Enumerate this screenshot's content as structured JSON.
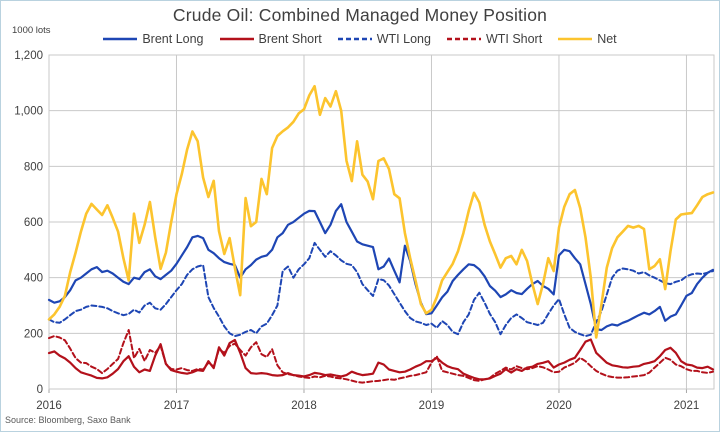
{
  "chart": {
    "title": "Crude Oil: Combined Managed Money Position",
    "unit_label": "1000 lots",
    "source": "Source: Bloomberg,  Saxo Bank"
  },
  "chart_data": {
    "type": "line",
    "title": "Crude Oil: Combined Managed Money Position",
    "ylabel": "1000 lots",
    "xlabel": "",
    "grid": true,
    "legend_position": "top",
    "xlim": [
      2016,
      2021.216
    ],
    "ylim": [
      0,
      1200
    ],
    "x_ticks": [
      2016,
      2017,
      2018,
      2019,
      2020,
      2021
    ],
    "y_ticks": [
      0,
      200,
      400,
      600,
      800,
      1000,
      1200
    ],
    "y_tick_labels": [
      "0",
      "200",
      "400",
      "600",
      "800",
      "1,000",
      "1,200"
    ],
    "x_start": 2016.0,
    "x_step": 0.0416667,
    "colors": {
      "blue": "#1e46b4",
      "red": "#b3111b",
      "yellow": "#fcc42e",
      "gridline": "#c9c9c9",
      "text": "#404040"
    },
    "series": [
      {
        "name": "Brent Long",
        "color": "#1e46b4",
        "dash": "solid",
        "width": 2.2,
        "values": [
          320,
          310,
          315,
          330,
          355,
          390,
          400,
          415,
          430,
          438,
          420,
          425,
          415,
          400,
          385,
          377,
          400,
          395,
          420,
          430,
          405,
          395,
          410,
          425,
          450,
          480,
          510,
          545,
          550,
          542,
          500,
          488,
          470,
          456,
          450,
          445,
          400,
          430,
          445,
          465,
          475,
          480,
          500,
          545,
          560,
          590,
          600,
          615,
          630,
          640,
          639,
          600,
          560,
          590,
          640,
          664,
          600,
          565,
          530,
          520,
          515,
          510,
          430,
          440,
          469,
          425,
          383,
          515,
          460,
          377,
          310,
          269,
          272,
          300,
          329,
          350,
          388,
          410,
          430,
          448,
          445,
          430,
          405,
          370,
          353,
          330,
          340,
          355,
          345,
          341,
          360,
          377,
          388,
          370,
          360,
          340,
          480,
          500,
          495,
          470,
          448,
          377,
          305,
          215,
          212,
          225,
          232,
          228,
          238,
          245,
          255,
          265,
          274,
          268,
          280,
          295,
          245,
          260,
          268,
          300,
          335,
          345,
          377,
          400,
          418,
          428
        ]
      },
      {
        "name": "Brent Short",
        "color": "#b3111b",
        "dash": "solid",
        "width": 2.2,
        "values": [
          129,
          135,
          120,
          110,
          95,
          75,
          60,
          54,
          48,
          40,
          38,
          42,
          55,
          72,
          100,
          118,
          80,
          60,
          70,
          65,
          120,
          161,
          90,
          68,
          62,
          58,
          55,
          60,
          68,
          65,
          100,
          75,
          150,
          120,
          165,
          176,
          130,
          75,
          57,
          55,
          57,
          55,
          50,
          48,
          50,
          57,
          50,
          48,
          45,
          50,
          58,
          55,
          50,
          52,
          48,
          45,
          50,
          62,
          55,
          50,
          52,
          55,
          95,
          88,
          70,
          65,
          60,
          62,
          70,
          80,
          88,
          100,
          100,
          112,
          95,
          82,
          75,
          71,
          55,
          47,
          40,
          35,
          35,
          38,
          47,
          55,
          71,
          59,
          71,
          65,
          77,
          80,
          90,
          94,
          100,
          77,
          88,
          95,
          105,
          112,
          140,
          170,
          178,
          130,
          112,
          94,
          85,
          82,
          78,
          77,
          80,
          82,
          90,
          94,
          100,
          118,
          140,
          148,
          130,
          100,
          88,
          85,
          77,
          75,
          80,
          70
        ]
      },
      {
        "name": "WTI Long",
        "color": "#1e46b4",
        "dash": "dashed",
        "width": 2,
        "values": [
          250,
          240,
          238,
          250,
          265,
          280,
          285,
          295,
          300,
          298,
          295,
          290,
          280,
          272,
          265,
          270,
          285,
          275,
          300,
          310,
          290,
          285,
          305,
          330,
          355,
          377,
          410,
          430,
          440,
          445,
          330,
          291,
          260,
          225,
          200,
          190,
          195,
          205,
          212,
          200,
          225,
          235,
          265,
          300,
          424,
          440,
          400,
          430,
          448,
          470,
          525,
          500,
          475,
          495,
          480,
          462,
          450,
          445,
          420,
          377,
          355,
          334,
          395,
          391,
          372,
          341,
          310,
          280,
          255,
          243,
          238,
          230,
          235,
          220,
          244,
          230,
          205,
          197,
          240,
          268,
          320,
          346,
          310,
          270,
          240,
          197,
          230,
          255,
          268,
          255,
          240,
          235,
          230,
          238,
          270,
          300,
          323,
          268,
          220,
          205,
          197,
          190,
          195,
          240,
          280,
          340,
          400,
          425,
          433,
          430,
          425,
          415,
          420,
          408,
          400,
          390,
          380,
          377,
          385,
          390,
          405,
          412,
          415,
          413,
          418,
          424
        ]
      },
      {
        "name": "WTI Short",
        "color": "#b3111b",
        "dash": "dashed",
        "width": 2,
        "values": [
          183,
          190,
          185,
          175,
          145,
          111,
          95,
          93,
          80,
          72,
          57,
          72,
          90,
          108,
          165,
          212,
          111,
          144,
          101,
          140,
          130,
          155,
          90,
          72,
          70,
          75,
          68,
          65,
          72,
          70,
          95,
          80,
          143,
          130,
          155,
          163,
          140,
          120,
          150,
          168,
          125,
          115,
          143,
          85,
          60,
          53,
          50,
          45,
          42,
          40,
          45,
          42,
          47,
          45,
          40,
          38,
          35,
          30,
          25,
          23,
          25,
          28,
          29,
          32,
          35,
          33,
          38,
          42,
          47,
          50,
          55,
          60,
          95,
          118,
          65,
          60,
          55,
          50,
          47,
          40,
          32,
          29,
          35,
          40,
          55,
          65,
          77,
          70,
          82,
          75,
          71,
          75,
          82,
          78,
          70,
          60,
          62,
          77,
          85,
          94,
          112,
          100,
          82,
          65,
          55,
          47,
          43,
          41,
          41,
          42,
          45,
          47,
          50,
          59,
          77,
          94,
          112,
          105,
          88,
          82,
          71,
          65,
          65,
          60,
          58,
          62
        ]
      },
      {
        "name": "Net",
        "color": "#fcc42e",
        "dash": "solid",
        "width": 2.6,
        "values": [
          250,
          268,
          295,
          335,
          420,
          490,
          565,
          630,
          665,
          645,
          625,
          660,
          615,
          565,
          470,
          390,
          630,
          525,
          590,
          672,
          545,
          432,
          490,
          600,
          700,
          772,
          860,
          925,
          890,
          760,
          690,
          748,
          567,
          485,
          542,
          435,
          337,
          686,
          585,
          600,
          755,
          700,
          866,
          909,
          926,
          940,
          960,
          990,
          1005,
          1055,
          1088,
          985,
          1045,
          1015,
          1070,
          1000,
          820,
          747,
          890,
          770,
          745,
          682,
          819,
          829,
          790,
          700,
          685,
          560,
          470,
          390,
          305,
          272,
          285,
          330,
          390,
          420,
          450,
          495,
          560,
          640,
          705,
          670,
          590,
          530,
          484,
          436,
          470,
          478,
          448,
          500,
          460,
          377,
          305,
          377,
          470,
          424,
          580,
          655,
          700,
          715,
          650,
          545,
          400,
          185,
          305,
          436,
          506,
          545,
          565,
          586,
          580,
          586,
          575,
          430,
          442,
          466,
          359,
          495,
          609,
          627,
          630,
          632,
          660,
          690,
          700,
          706
        ]
      }
    ]
  }
}
